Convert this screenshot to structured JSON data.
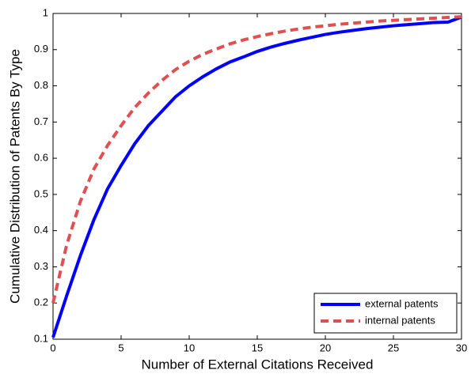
{
  "chart_data": {
    "type": "line",
    "xlabel": "Number of External Citations Received",
    "ylabel": "Cumulative Distribution of Patents By Type",
    "x": [
      0,
      1,
      2,
      3,
      4,
      5,
      6,
      7,
      8,
      9,
      10,
      11,
      12,
      13,
      14,
      15,
      16,
      17,
      18,
      19,
      20,
      21,
      22,
      23,
      24,
      25,
      26,
      27,
      28,
      29,
      30
    ],
    "series": [
      {
        "name": "external patents",
        "color": "#0000ff",
        "dash": "solid",
        "values": [
          0.105,
          0.22,
          0.33,
          0.43,
          0.515,
          0.58,
          0.64,
          0.69,
          0.73,
          0.77,
          0.8,
          0.825,
          0.847,
          0.866,
          0.88,
          0.895,
          0.907,
          0.917,
          0.926,
          0.934,
          0.942,
          0.948,
          0.953,
          0.958,
          0.962,
          0.966,
          0.969,
          0.972,
          0.975,
          0.976,
          0.99
        ]
      },
      {
        "name": "internal patents",
        "color": "#e05050",
        "dash": "dashed",
        "values": [
          0.2,
          0.36,
          0.48,
          0.57,
          0.635,
          0.69,
          0.74,
          0.78,
          0.815,
          0.845,
          0.868,
          0.887,
          0.902,
          0.916,
          0.927,
          0.936,
          0.944,
          0.951,
          0.957,
          0.962,
          0.966,
          0.97,
          0.973,
          0.976,
          0.979,
          0.981,
          0.983,
          0.985,
          0.987,
          0.989,
          0.991
        ]
      }
    ],
    "xlim": [
      0,
      30
    ],
    "xticks": [
      0,
      5,
      10,
      15,
      20,
      25,
      30
    ],
    "ylim": [
      0.1,
      1
    ],
    "yticks": [
      0.1,
      0.2,
      0.3,
      0.4,
      0.5,
      0.6,
      0.7,
      0.8,
      0.9,
      1
    ],
    "grid": false,
    "legend": "lower right"
  }
}
